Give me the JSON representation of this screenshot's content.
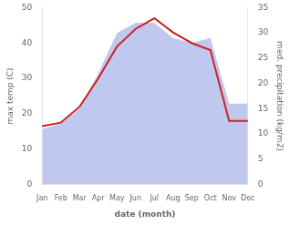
{
  "chart_data": {
    "type": "line",
    "xlabel": "date (month)",
    "ylabel": "max temp (C)",
    "y2label": "med. precipitation (kg/m2)",
    "categories": [
      "Jan",
      "Feb",
      "Mar",
      "Apr",
      "May",
      "Jun",
      "Jul",
      "Aug",
      "Sep",
      "Oct",
      "Nov",
      "Dec"
    ],
    "series": [
      {
        "type": "area",
        "color": "#c0c8f0",
        "axis": "y2",
        "values": [
          11,
          12,
          15,
          22,
          30,
          32,
          32,
          29,
          28,
          29,
          16,
          16
        ]
      },
      {
        "type": "line",
        "color": "#cc2222",
        "values": [
          16.5,
          17.5,
          22,
          30,
          39,
          44,
          47,
          43,
          40,
          38,
          18,
          18
        ]
      }
    ],
    "ylim": [
      0,
      50
    ],
    "yticks": [
      0,
      10,
      20,
      30,
      40,
      50
    ],
    "y2lim": [
      0,
      35
    ],
    "y2ticks": [
      0,
      5,
      10,
      15,
      20,
      25,
      30,
      35
    ],
    "grid": false
  }
}
